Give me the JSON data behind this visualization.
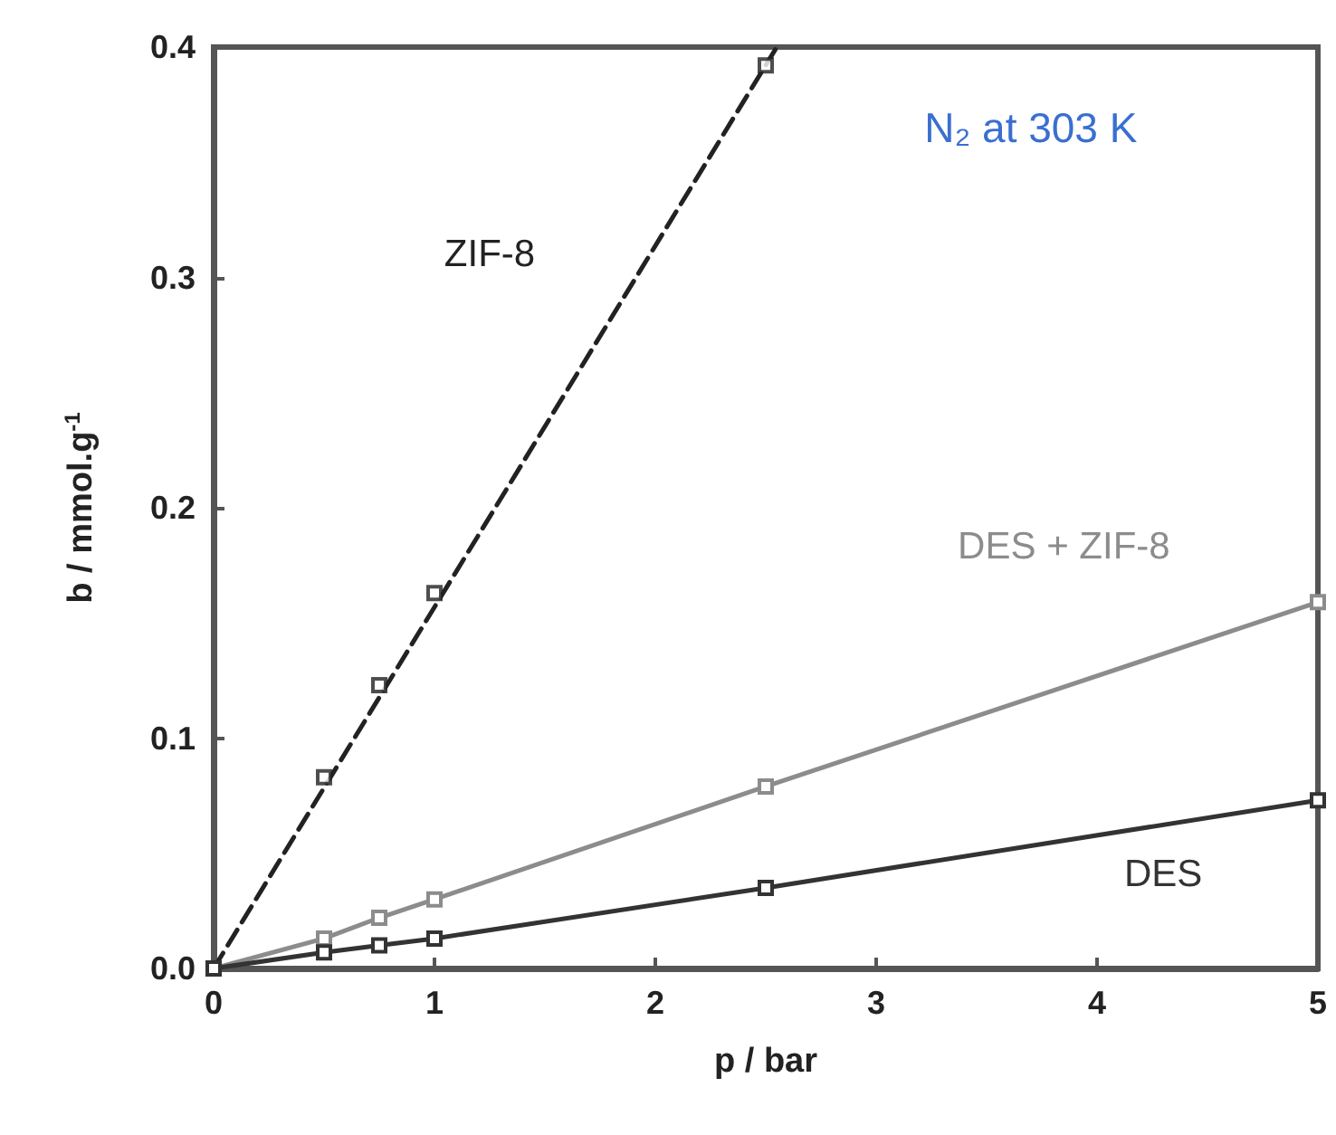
{
  "chart_data": {
    "type": "scatter",
    "xlabel": "p / bar",
    "ylabel": "b / mmol.g$^{-1}$",
    "annotations": [
      "N₂ at 303 K"
    ],
    "xlim": [
      0,
      5
    ],
    "xticks": [
      0,
      1,
      2,
      3,
      4,
      5
    ],
    "ylim": [
      0,
      0.4
    ],
    "yticks": [
      {
        "value": 0,
        "label": "0.0"
      },
      {
        "value": 0.1,
        "label": "0.1"
      },
      {
        "value": 0.2,
        "label": "0.2"
      },
      {
        "value": 0.3,
        "label": "0.3"
      },
      {
        "value": 0.4,
        "label": "0.4"
      }
    ],
    "grid": false,
    "legend": false,
    "marker": "square",
    "series": [
      {
        "name": "ZIF-8",
        "color": "#222222",
        "x": [
          0.5,
          0.75,
          1,
          2.5
        ],
        "values": [
          0.083,
          0.123,
          0.163,
          0.392
        ]
      },
      {
        "type": "line",
        "color": "#222222",
        "line_style": "dashed",
        "marker": "none",
        "x": [
          0,
          2.55
        ],
        "values": [
          0,
          0.4
        ]
      },
      {
        "name": "DES + ZIF-8",
        "type": "line",
        "color": "#8c8c8c",
        "line_style": "solid",
        "x": [
          0,
          0.5,
          0.75,
          1,
          2.5,
          5
        ],
        "values": [
          0,
          0.013,
          0.022,
          0.03,
          0.079,
          0.159
        ]
      },
      {
        "name": "DES",
        "type": "line",
        "color": "#333333",
        "line_style": "solid",
        "x": [
          0,
          0.5,
          0.75,
          1,
          2.5,
          5
        ],
        "values": [
          0,
          0.007,
          0.01,
          0.013,
          0.035,
          0.073
        ]
      }
    ]
  }
}
